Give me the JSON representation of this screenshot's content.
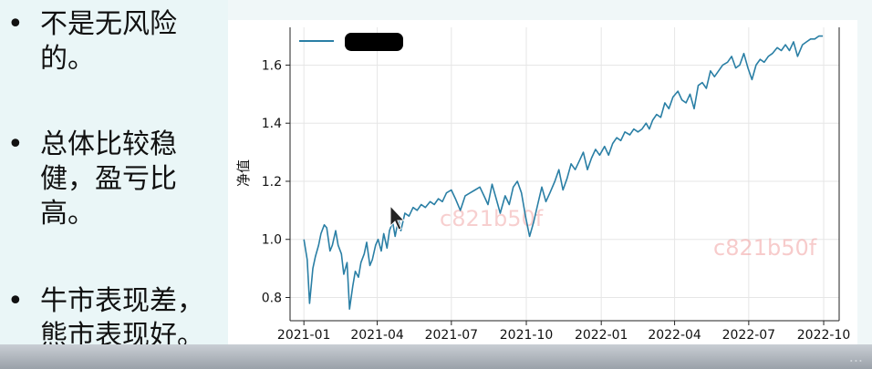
{
  "bullets": [
    {
      "marker": "•",
      "lines": [
        "不是无风险",
        "的。"
      ]
    },
    {
      "marker": "•",
      "lines": [
        "总体比较稳",
        "健，盈亏比",
        "高。"
      ]
    },
    {
      "marker": "•",
      "lines": [
        "牛市表现差，",
        "熊市表现好。"
      ]
    }
  ],
  "watermark": "c821b50f",
  "bottom_caption": "...",
  "colors": {
    "series": "#2a7fa5",
    "watermark": "#f2a9a9",
    "legend_redaction": "#000000"
  },
  "chart_data": {
    "type": "line",
    "title": "",
    "xlabel": "",
    "ylabel": "净值",
    "ylim": [
      0.72,
      1.73
    ],
    "yticks": [
      0.8,
      1.0,
      1.2,
      1.4,
      1.6
    ],
    "ytick_labels": [
      "0.8",
      "1.0",
      "1.2",
      "1.4",
      "1.6"
    ],
    "xticks": [
      "2021-01",
      "2021-04",
      "2021-07",
      "2021-10",
      "2022-01",
      "2022-04",
      "2022-07",
      "2022-10"
    ],
    "xlim": [
      "2020-12-15",
      "2022-10-20"
    ],
    "grid": true,
    "legend": "top-left (label redacted)",
    "series": [
      {
        "x": [
          "2021-01-01",
          "2021-01-05",
          "2021-01-08",
          "2021-01-12",
          "2021-01-15",
          "2021-01-19",
          "2021-01-22",
          "2021-01-26",
          "2021-01-29",
          "2021-02-02",
          "2021-02-05",
          "2021-02-09",
          "2021-02-12",
          "2021-02-16",
          "2021-02-19",
          "2021-02-23",
          "2021-02-26",
          "2021-03-02",
          "2021-03-05",
          "2021-03-09",
          "2021-03-12",
          "2021-03-16",
          "2021-03-19",
          "2021-03-23",
          "2021-03-26",
          "2021-03-30",
          "2021-04-02",
          "2021-04-06",
          "2021-04-09",
          "2021-04-13",
          "2021-04-16",
          "2021-04-20",
          "2021-04-23",
          "2021-04-27",
          "2021-04-30",
          "2021-05-05",
          "2021-05-10",
          "2021-05-15",
          "2021-05-20",
          "2021-05-25",
          "2021-05-30",
          "2021-06-05",
          "2021-06-10",
          "2021-06-15",
          "2021-06-20",
          "2021-06-25",
          "2021-07-01",
          "2021-07-06",
          "2021-07-12",
          "2021-07-18",
          "2021-07-24",
          "2021-07-30",
          "2021-08-05",
          "2021-08-10",
          "2021-08-15",
          "2021-08-20",
          "2021-08-25",
          "2021-08-30",
          "2021-09-05",
          "2021-09-10",
          "2021-09-15",
          "2021-09-20",
          "2021-09-25",
          "2021-09-30",
          "2021-10-05",
          "2021-10-10",
          "2021-10-15",
          "2021-10-20",
          "2021-10-25",
          "2021-10-30",
          "2021-11-05",
          "2021-11-10",
          "2021-11-15",
          "2021-11-20",
          "2021-11-25",
          "2021-11-30",
          "2021-12-05",
          "2021-12-10",
          "2021-12-15",
          "2021-12-20",
          "2021-12-25",
          "2021-12-30",
          "2022-01-05",
          "2022-01-10",
          "2022-01-15",
          "2022-01-20",
          "2022-01-25",
          "2022-01-30",
          "2022-02-05",
          "2022-02-10",
          "2022-02-15",
          "2022-02-20",
          "2022-02-25",
          "2022-03-01",
          "2022-03-05",
          "2022-03-10",
          "2022-03-15",
          "2022-03-20",
          "2022-03-25",
          "2022-03-30",
          "2022-04-05",
          "2022-04-10",
          "2022-04-15",
          "2022-04-20",
          "2022-04-25",
          "2022-04-30",
          "2022-05-05",
          "2022-05-10",
          "2022-05-15",
          "2022-05-20",
          "2022-05-25",
          "2022-05-30",
          "2022-06-05",
          "2022-06-10",
          "2022-06-15",
          "2022-06-20",
          "2022-06-25",
          "2022-06-30",
          "2022-07-05",
          "2022-07-10",
          "2022-07-15",
          "2022-07-20",
          "2022-07-25",
          "2022-07-30",
          "2022-08-05",
          "2022-08-10",
          "2022-08-15",
          "2022-08-20",
          "2022-08-25",
          "2022-08-30",
          "2022-09-05",
          "2022-09-10",
          "2022-09-15",
          "2022-09-20",
          "2022-09-25",
          "2022-09-30"
        ],
        "values": [
          1.0,
          0.93,
          0.78,
          0.9,
          0.94,
          0.98,
          1.02,
          1.05,
          1.04,
          0.96,
          0.98,
          1.03,
          0.98,
          0.95,
          0.88,
          0.92,
          0.76,
          0.84,
          0.89,
          0.87,
          0.92,
          0.95,
          0.99,
          0.91,
          0.93,
          0.98,
          1.0,
          0.96,
          1.02,
          0.97,
          1.03,
          1.06,
          1.01,
          1.07,
          1.03,
          1.09,
          1.08,
          1.11,
          1.1,
          1.12,
          1.11,
          1.13,
          1.12,
          1.14,
          1.13,
          1.16,
          1.17,
          1.14,
          1.1,
          1.15,
          1.16,
          1.17,
          1.18,
          1.15,
          1.12,
          1.19,
          1.14,
          1.09,
          1.15,
          1.12,
          1.18,
          1.2,
          1.16,
          1.08,
          1.01,
          1.06,
          1.12,
          1.18,
          1.13,
          1.16,
          1.2,
          1.24,
          1.17,
          1.21,
          1.26,
          1.24,
          1.27,
          1.3,
          1.24,
          1.28,
          1.31,
          1.29,
          1.32,
          1.29,
          1.33,
          1.35,
          1.34,
          1.37,
          1.36,
          1.38,
          1.37,
          1.38,
          1.4,
          1.38,
          1.41,
          1.43,
          1.42,
          1.47,
          1.45,
          1.49,
          1.51,
          1.48,
          1.47,
          1.5,
          1.45,
          1.53,
          1.54,
          1.52,
          1.58,
          1.56,
          1.58,
          1.6,
          1.61,
          1.63,
          1.59,
          1.6,
          1.64,
          1.59,
          1.55,
          1.6,
          1.62,
          1.61,
          1.63,
          1.64,
          1.66,
          1.65,
          1.67,
          1.65,
          1.68,
          1.63,
          1.67,
          1.68,
          1.69,
          1.69,
          1.7,
          1.7
        ]
      }
    ]
  }
}
